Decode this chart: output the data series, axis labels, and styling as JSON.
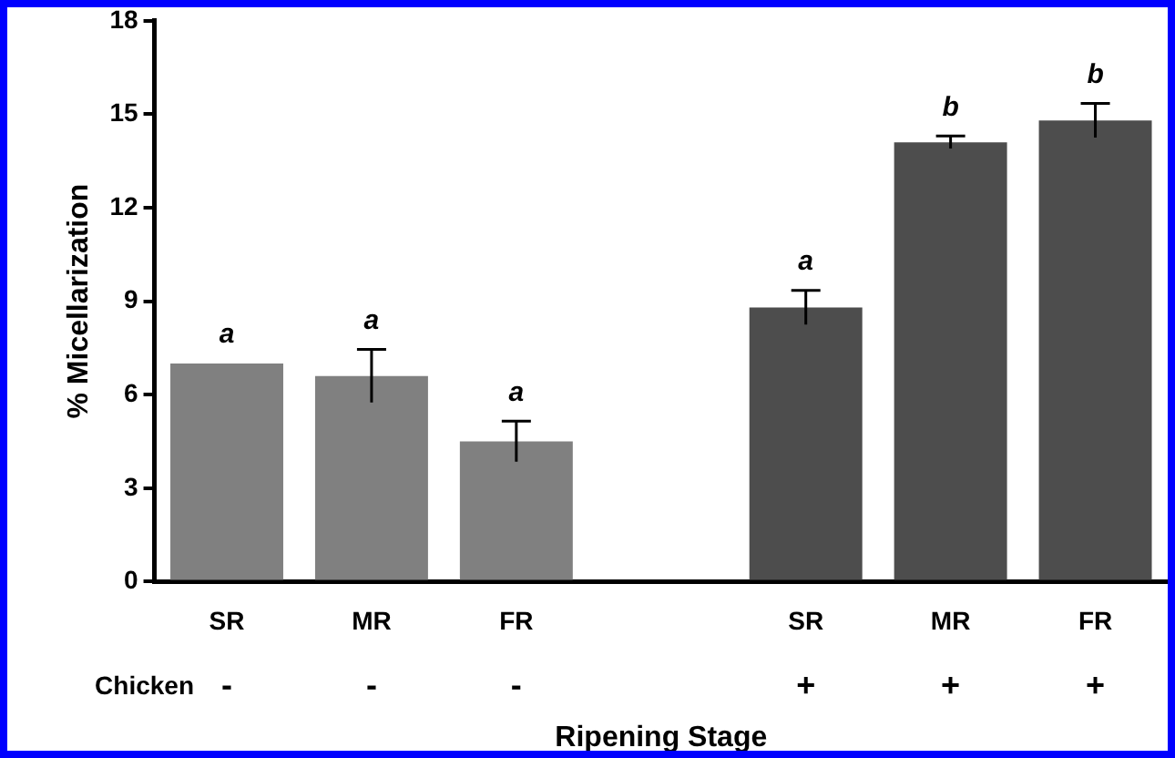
{
  "chart_data": {
    "type": "bar",
    "xlabel": "Ripening Stage",
    "ylabel": "% Micellarization",
    "categories": [
      "SR",
      "MR",
      "FR",
      null,
      "SR",
      "MR",
      "FR"
    ],
    "values": [
      7.0,
      6.6,
      4.5,
      null,
      8.8,
      14.1,
      14.8
    ],
    "errors": [
      null,
      0.85,
      0.65,
      null,
      0.55,
      0.2,
      0.55
    ],
    "colors": [
      "#808080",
      "#808080",
      "#808080",
      "#808080",
      "#4d4d4d",
      "#4d4d4d",
      "#4d4d4d"
    ],
    "value_labels": [
      "a",
      "a",
      "a",
      null,
      "a",
      "b",
      "b"
    ],
    "annotations": [
      "Chicken",
      "-",
      "-",
      "-",
      null,
      "+",
      "+",
      "+"
    ],
    "ylim": [
      0,
      18
    ],
    "yticks": [
      0,
      3,
      6,
      9,
      12,
      15,
      18
    ],
    "grid": false,
    "legend": false
  }
}
